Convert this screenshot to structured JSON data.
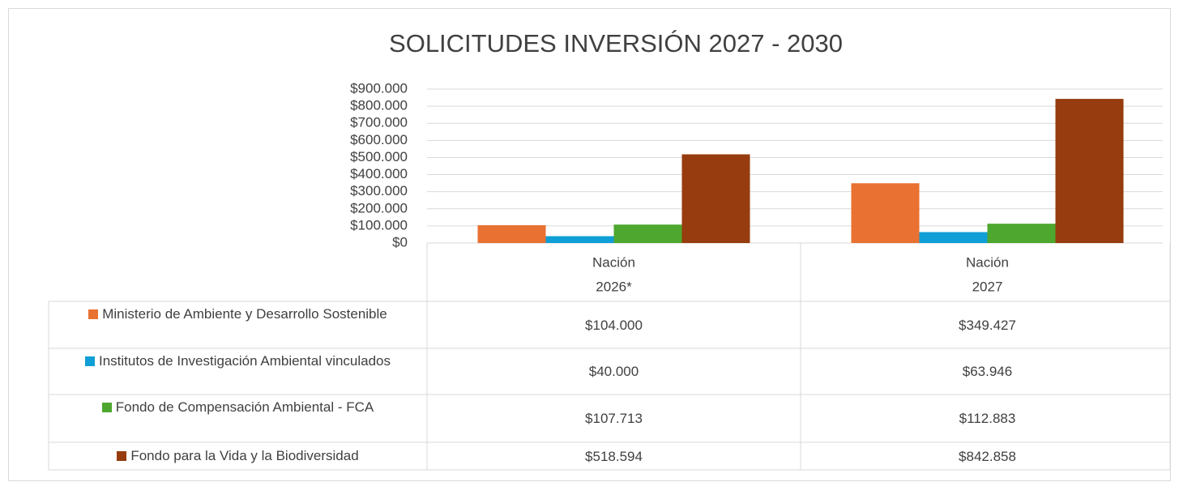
{
  "chart_data": {
    "type": "bar",
    "title": "SOLICITUDES INVERSIÓN 2027 - 2030",
    "categories": [
      [
        "Nación",
        "2026*"
      ],
      [
        "Nación",
        "2027"
      ]
    ],
    "series": [
      {
        "name": "Ministerio de Ambiente y Desarrollo Sostenible",
        "color": "#E97132",
        "values": [
          104000,
          349427
        ],
        "value_labels": [
          "$104.000",
          "$349.427"
        ]
      },
      {
        "name": "Institutos de Investigación Ambiental vinculados",
        "color": "#0F9ED5",
        "values": [
          40000,
          63946
        ],
        "value_labels": [
          "$40.000",
          "$63.946"
        ]
      },
      {
        "name": "Fondo de Compensación Ambiental - FCA",
        "color": "#4EA72E",
        "values": [
          107713,
          112883
        ],
        "value_labels": [
          "$107.713",
          "$112.883"
        ]
      },
      {
        "name": "Fondo para la Vida y la Biodiversidad",
        "color": "#963C0F",
        "values": [
          518594,
          842858
        ],
        "value_labels": [
          "$518.594",
          "$842.858"
        ]
      }
    ],
    "ylim": [
      0,
      900000
    ],
    "yticks": [
      {
        "value": 0,
        "label": "$0"
      },
      {
        "value": 100000,
        "label": "$100.000"
      },
      {
        "value": 200000,
        "label": "$200.000"
      },
      {
        "value": 300000,
        "label": "$300.000"
      },
      {
        "value": 400000,
        "label": "$400.000"
      },
      {
        "value": 500000,
        "label": "$500.000"
      },
      {
        "value": 600000,
        "label": "$600.000"
      },
      {
        "value": 700000,
        "label": "$700.000"
      },
      {
        "value": 800000,
        "label": "$800.000"
      },
      {
        "value": 900000,
        "label": "$900.000"
      }
    ],
    "grid": true
  }
}
